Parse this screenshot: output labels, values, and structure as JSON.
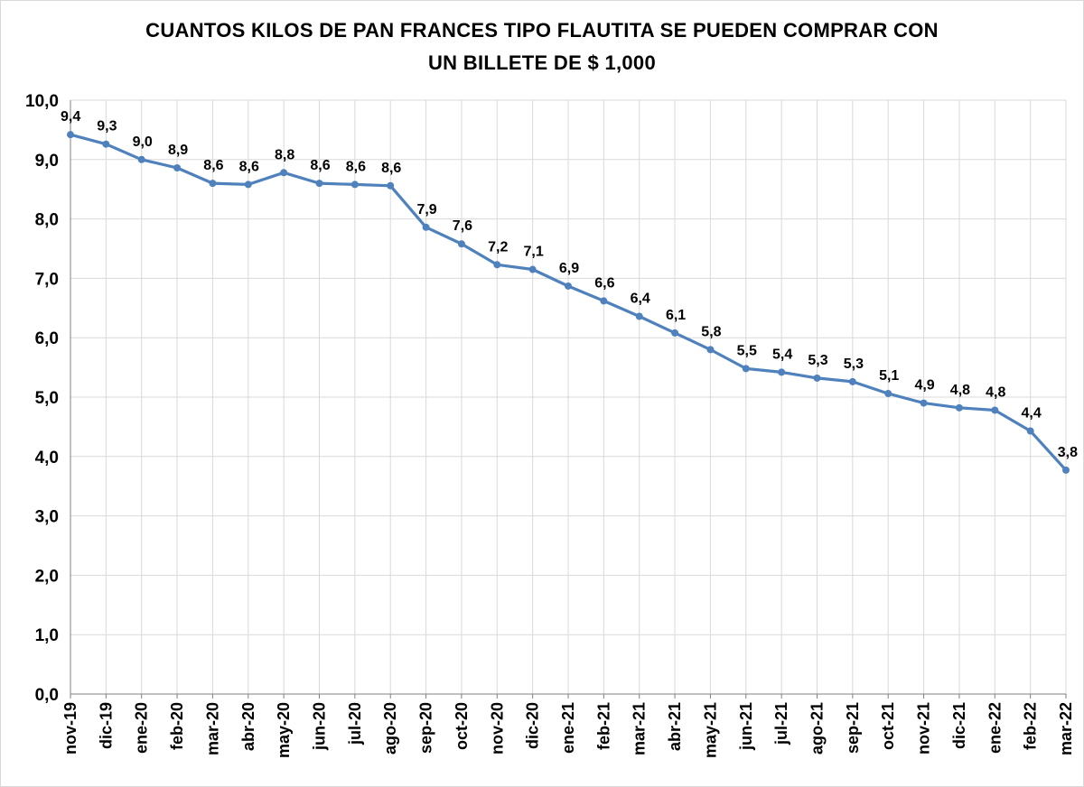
{
  "chart_data": {
    "type": "line",
    "title_line1": "CUANTOS KILOS DE PAN FRANCES TIPO FLAUTITA SE PUEDEN COMPRAR CON",
    "title_line2": "UN BILLETE DE $ 1,000",
    "xlabel": "",
    "ylabel": "",
    "ylim": [
      0,
      10
    ],
    "y_ticks": [
      "0,0",
      "1,0",
      "2,0",
      "3,0",
      "4,0",
      "5,0",
      "6,0",
      "7,0",
      "8,0",
      "9,0",
      "10,0"
    ],
    "grid": true,
    "line_color": "#4f81bd",
    "categories": [
      "nov-19",
      "dic-19",
      "ene-20",
      "feb-20",
      "mar-20",
      "abr-20",
      "may-20",
      "jun-20",
      "jul-20",
      "ago-20",
      "sep-20",
      "oct-20",
      "nov-20",
      "dic-20",
      "ene-21",
      "feb-21",
      "mar-21",
      "abr-21",
      "may-21",
      "jun-21",
      "jul-21",
      "ago-21",
      "sep-21",
      "oct-21",
      "nov-21",
      "dic-21",
      "ene-22",
      "feb-22",
      "mar-22"
    ],
    "values": [
      9.42,
      9.26,
      9.0,
      8.86,
      8.6,
      8.58,
      8.78,
      8.6,
      8.58,
      8.56,
      7.86,
      7.58,
      7.23,
      7.15,
      6.87,
      6.62,
      6.36,
      6.08,
      5.8,
      5.48,
      5.42,
      5.32,
      5.26,
      5.06,
      4.9,
      4.82,
      4.78,
      4.43,
      3.77
    ],
    "data_labels": [
      "9,4",
      "9,3",
      "9,0",
      "8,9",
      "8,6",
      "8,6",
      "8,8",
      "8,6",
      "8,6",
      "8,6",
      "7,9",
      "7,6",
      "7,2",
      "7,1",
      "6,9",
      "6,6",
      "6,4",
      "6,1",
      "5,8",
      "5,5",
      "5,4",
      "5,3",
      "5,3",
      "5,1",
      "4,9",
      "4,8",
      "4,8",
      "4,4",
      "3,8"
    ]
  }
}
